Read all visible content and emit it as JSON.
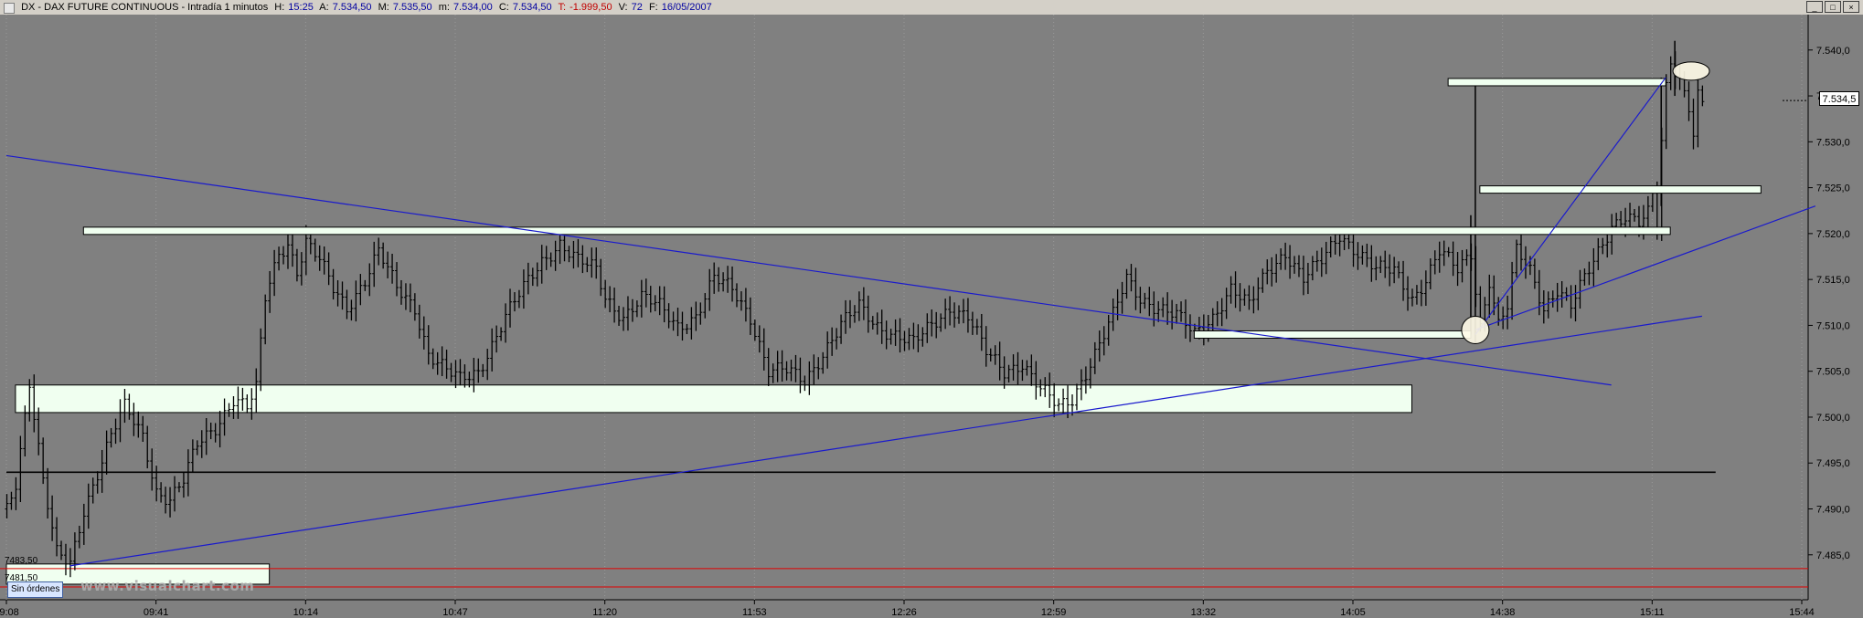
{
  "titlebar": {
    "symbol": "DX - DAX FUTURE CONTINUOUS - Intradía 1 minutos",
    "hour_label": "H:",
    "hour": "15:25",
    "open_label": "A:",
    "open": "7.534,50",
    "max_label": "M:",
    "max": "7.535,50",
    "min_label": "m:",
    "min": "7.534,00",
    "close_label": "C:",
    "close": "7.534,50",
    "change_label": "T:",
    "change": "-1.999,50",
    "volume_label": "V:",
    "volume": "72",
    "date_label": "F:",
    "date": "16/05/2007"
  },
  "window_buttons": [
    "_",
    "□",
    "×"
  ],
  "current_price": "7.534,5",
  "level_labels": {
    "upper": "7483,50",
    "lower": "7481,50"
  },
  "status_chip": "Sin órdenes",
  "watermark": "www.visualchart.com",
  "colors": {
    "background": "#808080",
    "trendline": "#1a1acd",
    "box_fill": "#f0fff0",
    "support": "#000000",
    "limit_line": "#e00000"
  },
  "chart_data": {
    "type": "bar",
    "subtype": "ohlc",
    "y_ticks": [
      "7.485,0",
      "7.490,0",
      "7.495,0",
      "7.500,0",
      "7.505,0",
      "7.510,0",
      "7.515,0",
      "7.520,0",
      "7.525,0",
      "7.530,0",
      "7.535,0",
      "7.540,0"
    ],
    "y_tick_values": [
      7485,
      7490,
      7495,
      7500,
      7505,
      7510,
      7515,
      7520,
      7525,
      7530,
      7535,
      7540
    ],
    "x_ticks": [
      "09:08",
      "09:41",
      "10:14",
      "10:47",
      "11:20",
      "11:53",
      "12:26",
      "12:59",
      "13:32",
      "14:05",
      "14:38",
      "15:11",
      "15:44"
    ],
    "x_tick_minutes": [
      548,
      581,
      614,
      647,
      680,
      713,
      746,
      779,
      812,
      845,
      878,
      911,
      944
    ],
    "ylim": [
      7481,
      7543
    ],
    "xlim": [
      547,
      947
    ],
    "keypoints": [
      [
        548,
        7490
      ],
      [
        550,
        7493
      ],
      [
        553,
        7504
      ],
      [
        556,
        7493
      ],
      [
        559,
        7485
      ],
      [
        562,
        7484
      ],
      [
        565,
        7490
      ],
      [
        568,
        7494
      ],
      [
        571,
        7498
      ],
      [
        574,
        7501
      ],
      [
        578,
        7498
      ],
      [
        581,
        7492
      ],
      [
        584,
        7491
      ],
      [
        587,
        7493
      ],
      [
        590,
        7497
      ],
      [
        594,
        7499
      ],
      [
        598,
        7502
      ],
      [
        601,
        7501
      ],
      [
        603,
        7503
      ],
      [
        605,
        7513
      ],
      [
        608,
        7518
      ],
      [
        610,
        7519
      ],
      [
        612,
        7516
      ],
      [
        614,
        7519
      ],
      [
        617,
        7517
      ],
      [
        620,
        7514
      ],
      [
        623,
        7512
      ],
      [
        627,
        7515
      ],
      [
        630,
        7518
      ],
      [
        634,
        7514
      ],
      [
        638,
        7512
      ],
      [
        641,
        7507
      ],
      [
        645,
        7505
      ],
      [
        648,
        7504
      ],
      [
        652,
        7505
      ],
      [
        655,
        7508
      ],
      [
        658,
        7511
      ],
      [
        662,
        7514
      ],
      [
        666,
        7517
      ],
      [
        670,
        7519
      ],
      [
        674,
        7517
      ],
      [
        678,
        7516
      ],
      [
        680,
        7513
      ],
      [
        684,
        7511
      ],
      [
        688,
        7513
      ],
      [
        692,
        7512
      ],
      [
        696,
        7510
      ],
      [
        700,
        7511
      ],
      [
        704,
        7515
      ],
      [
        708,
        7514
      ],
      [
        712,
        7511
      ],
      [
        716,
        7505
      ],
      [
        720,
        7505
      ],
      [
        724,
        7504
      ],
      [
        728,
        7507
      ],
      [
        732,
        7510
      ],
      [
        736,
        7512
      ],
      [
        740,
        7510
      ],
      [
        744,
        7509
      ],
      [
        748,
        7508
      ],
      [
        752,
        7510
      ],
      [
        756,
        7512
      ],
      [
        760,
        7511
      ],
      [
        764,
        7507
      ],
      [
        768,
        7505
      ],
      [
        772,
        7506
      ],
      [
        776,
        7503
      ],
      [
        780,
        7501
      ],
      [
        783,
        7502
      ],
      [
        786,
        7505
      ],
      [
        789,
        7508
      ],
      [
        792,
        7511
      ],
      [
        795,
        7515
      ],
      [
        798,
        7513
      ],
      [
        802,
        7512
      ],
      [
        806,
        7511
      ],
      [
        810,
        7509
      ],
      [
        814,
        7511
      ],
      [
        818,
        7514
      ],
      [
        822,
        7512
      ],
      [
        826,
        7516
      ],
      [
        830,
        7518
      ],
      [
        834,
        7515
      ],
      [
        838,
        7517
      ],
      [
        842,
        7520
      ],
      [
        846,
        7518
      ],
      [
        850,
        7516
      ],
      [
        854,
        7516
      ],
      [
        858,
        7513
      ],
      [
        861,
        7515
      ],
      [
        864,
        7518
      ],
      [
        868,
        7516
      ],
      [
        871,
        7518
      ],
      [
        873,
        7510
      ],
      [
        875,
        7515
      ],
      [
        877,
        7510
      ],
      [
        879,
        7512
      ],
      [
        881,
        7518
      ],
      [
        884,
        7516
      ],
      [
        887,
        7512
      ],
      [
        890,
        7514
      ],
      [
        893,
        7512
      ],
      [
        896,
        7515
      ],
      [
        899,
        7518
      ],
      [
        902,
        7521
      ],
      [
        905,
        7522
      ],
      [
        908,
        7521
      ],
      [
        910,
        7522
      ],
      [
        911,
        7524
      ],
      [
        912,
        7521
      ],
      [
        913,
        7530
      ],
      [
        914,
        7536
      ],
      [
        915,
        7539
      ],
      [
        917,
        7537
      ],
      [
        919,
        7534
      ],
      [
        920,
        7531
      ],
      [
        921,
        7535
      ],
      [
        922,
        7534
      ]
    ],
    "annotations": {
      "resistance_zone": {
        "y": 7520.3,
        "x": [
          565,
          915
        ]
      },
      "support_zone": {
        "y": [
          7500.5,
          7503.5
        ],
        "x": [
          550,
          858
        ]
      },
      "high_zone": {
        "y": 7536.5,
        "x": [
          866,
          914
        ]
      },
      "mid_zone": {
        "y": 7524.8,
        "x": [
          873,
          935
        ]
      },
      "low_zone": {
        "y": 7509.0,
        "x": [
          810,
          871
        ]
      },
      "start_zone": {
        "y": [
          7481.8,
          7484.0
        ],
        "x": [
          548,
          606
        ]
      },
      "support_line": {
        "y": 7494.0,
        "x": [
          548,
          925
        ]
      },
      "limit_lines": [
        7483.5,
        7481.5
      ],
      "trend_lines": [
        {
          "from": [
            548,
            7528.5
          ],
          "to": [
            902,
            7503.5
          ]
        },
        {
          "from": [
            562,
            7483.8
          ],
          "to": [
            922,
            7511.0
          ]
        },
        {
          "from": [
            872,
            7509.5
          ],
          "to": [
            947,
            7523.0
          ]
        },
        {
          "from": [
            872,
            7509.0
          ],
          "to": [
            914,
            7537.0
          ]
        }
      ],
      "markers": [
        {
          "x": 872,
          "y": 7509.5,
          "shape": "circle"
        },
        {
          "x": 918,
          "y": 7537.5,
          "shape": "ellipse"
        }
      ]
    }
  }
}
